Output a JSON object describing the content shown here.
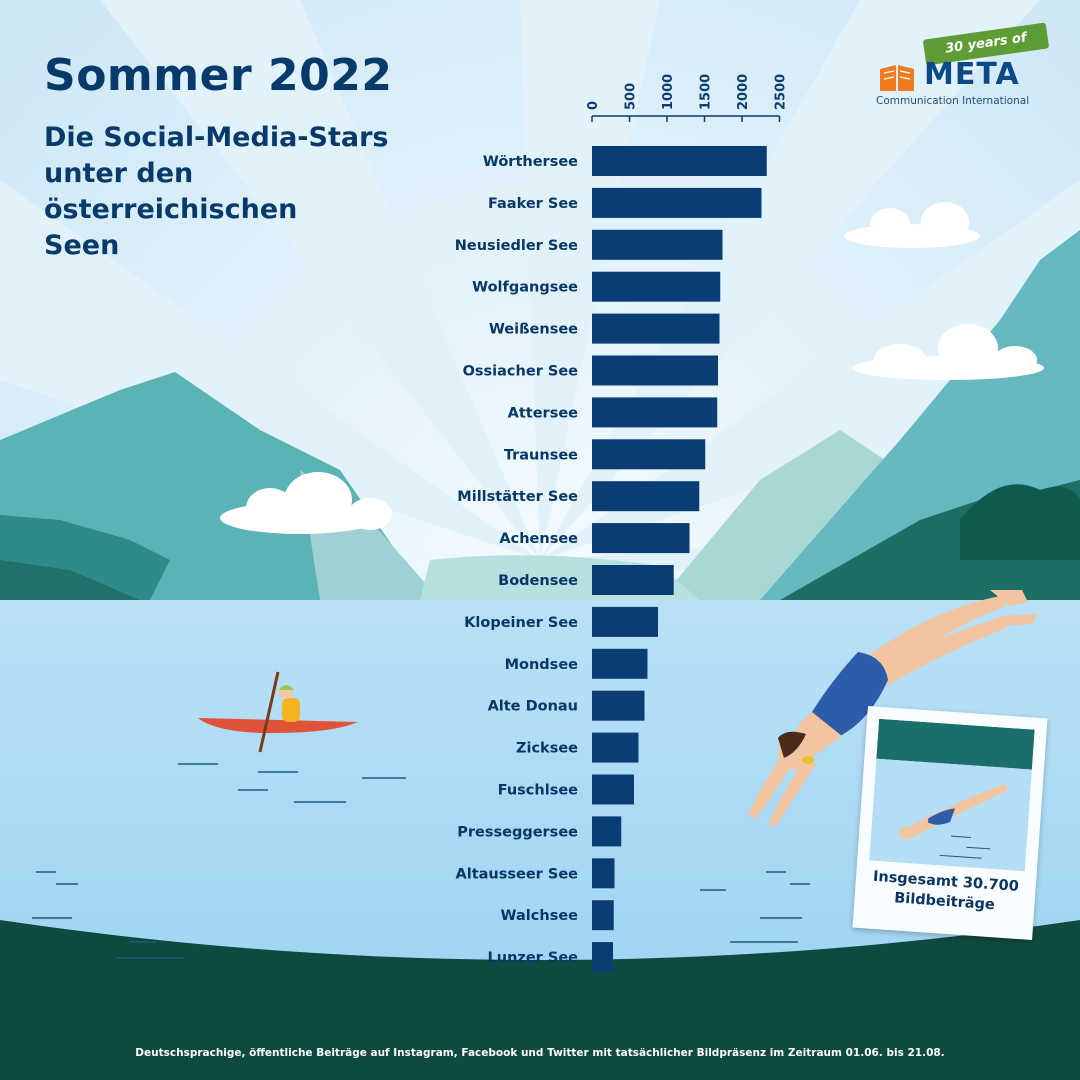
{
  "header": {
    "title": "Sommer 2022",
    "subtitle_lines": [
      "Die Social-Media-Stars",
      "unter den",
      "österreichischen",
      "Seen"
    ]
  },
  "logo": {
    "badge": "30 years of",
    "name": "META",
    "tagline": "Communication International"
  },
  "polaroid": {
    "label_lines": [
      "Insgesamt 30.700",
      "Bildbeiträge"
    ]
  },
  "footnote": "Deutschsprachige, öffentliche Beiträge auf Instagram, Facebook und Twitter mit tatsächlicher Bildpräsenz im Zeitraum 01.06. bis 21.08.",
  "colors": {
    "bar": "#0a3d73",
    "label": "#073766",
    "lake": "#a4d7f4",
    "mountain": "#3f9aa4",
    "dark_shore": "#0e4f45"
  },
  "chart_data": {
    "type": "bar",
    "orientation": "horizontal",
    "categories": [
      "Wörthersee",
      "Faaker See",
      "Neusiedler See",
      "Wolfgangsee",
      "Weißensee",
      "Ossiacher See",
      "Attersee",
      "Traunsee",
      "Millstätter See",
      "Achensee",
      "Bodensee",
      "Klopeiner See",
      "Mondsee",
      "Alte Donau",
      "Zicksee",
      "Fuschlsee",
      "Presseggersee",
      "Altausseer See",
      "Walchsee",
      "Lunzer See"
    ],
    "values": [
      2330,
      2260,
      1740,
      1710,
      1700,
      1680,
      1670,
      1510,
      1430,
      1300,
      1090,
      880,
      740,
      700,
      620,
      560,
      390,
      300,
      290,
      280
    ],
    "xticks": [
      "0",
      "500",
      "1000",
      "1500",
      "2000",
      "2500"
    ],
    "xlim": [
      0,
      2500
    ],
    "title": "",
    "xlabel": "",
    "ylabel": ""
  }
}
